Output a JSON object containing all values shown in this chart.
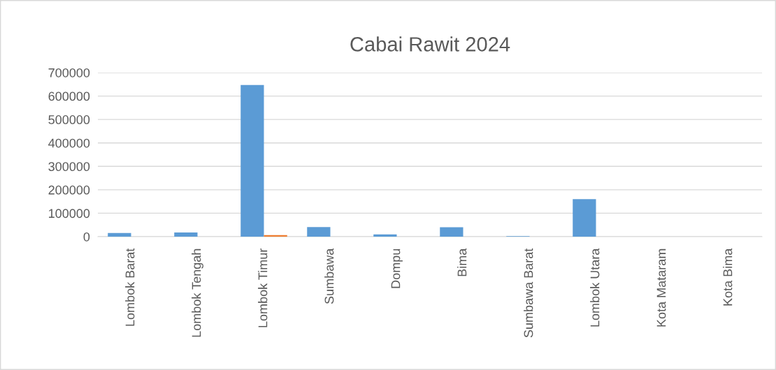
{
  "chart_data": {
    "type": "bar",
    "title": "Cabai Rawit 2024",
    "categories": [
      "Lombok Barat",
      "Lombok Tengah",
      "Lombok Timur",
      "Sumbawa",
      "Dompu",
      "Bima",
      "Sumbawa Barat",
      "Lombok Utara",
      "Kota Mataram",
      "Kota Bima"
    ],
    "series": [
      {
        "color": "#5b9bd5",
        "values": [
          16000,
          18000,
          647000,
          41000,
          10000,
          40000,
          2000,
          160000,
          0,
          0
        ]
      },
      {
        "color": "#ed7d31",
        "values": [
          0,
          0,
          7000,
          0,
          0,
          0,
          0,
          0,
          0,
          0
        ]
      }
    ],
    "ylim": [
      0,
      700000
    ],
    "yticks": [
      0,
      100000,
      200000,
      300000,
      400000,
      500000,
      600000,
      700000
    ],
    "grid": "y",
    "legend": false
  }
}
